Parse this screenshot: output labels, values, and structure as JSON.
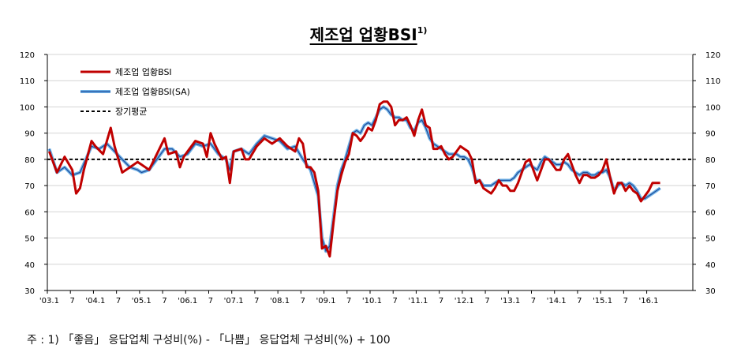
{
  "chart_data": {
    "type": "line",
    "title": "제조업 업황BSI",
    "title_superscript": "1)",
    "ylim": [
      30,
      120
    ],
    "yticks": [
      30,
      40,
      50,
      60,
      70,
      80,
      90,
      100,
      110,
      120
    ],
    "x_start": "2003-01",
    "x_end": "2016-12",
    "x_tick_labels": [
      "'03.1",
      "7",
      "'04.1",
      "7",
      "'05.1",
      "7",
      "'06.1",
      "7",
      "'07.1",
      "7",
      "'08.1",
      "7",
      "'09.1",
      "7",
      "'10.1",
      "7",
      "'11.1",
      "7",
      "'12.1",
      "7",
      "'13.1",
      "7",
      "'14.1",
      "7",
      "'15.1",
      "7",
      "'16.1"
    ],
    "grid": "horizontal",
    "legend_position": "top-left",
    "colors": {
      "raw": "#c00000",
      "sa_outer": "#6fb1e6",
      "sa_inner": "#1f4e9c",
      "average": "#000000"
    },
    "series": [
      {
        "name": "제조업 업황BSI",
        "style": "solid",
        "points": [
          [
            "2003-01",
            83
          ],
          [
            "2003-03",
            75
          ],
          [
            "2003-05",
            81
          ],
          [
            "2003-07",
            76
          ],
          [
            "2003-08",
            67
          ],
          [
            "2003-09",
            69
          ],
          [
            "2003-10",
            76
          ],
          [
            "2003-12",
            87
          ],
          [
            "2004-01",
            85
          ],
          [
            "2004-03",
            82
          ],
          [
            "2004-05",
            92
          ],
          [
            "2004-06",
            85
          ],
          [
            "2004-08",
            75
          ],
          [
            "2004-10",
            77
          ],
          [
            "2004-12",
            79
          ],
          [
            "2005-01",
            78
          ],
          [
            "2005-03",
            76
          ],
          [
            "2005-05",
            82
          ],
          [
            "2005-07",
            88
          ],
          [
            "2005-08",
            82
          ],
          [
            "2005-10",
            83
          ],
          [
            "2005-11",
            77
          ],
          [
            "2005-12",
            81
          ],
          [
            "2006-01",
            83
          ],
          [
            "2006-03",
            87
          ],
          [
            "2006-05",
            86
          ],
          [
            "2006-06",
            81
          ],
          [
            "2006-07",
            90
          ],
          [
            "2006-08",
            86
          ],
          [
            "2006-10",
            80
          ],
          [
            "2006-11",
            81
          ],
          [
            "2006-12",
            71
          ],
          [
            "2007-01",
            83
          ],
          [
            "2007-03",
            84
          ],
          [
            "2007-04",
            80
          ],
          [
            "2007-05",
            80
          ],
          [
            "2007-07",
            85
          ],
          [
            "2007-09",
            88
          ],
          [
            "2007-11",
            86
          ],
          [
            "2008-01",
            88
          ],
          [
            "2008-03",
            85
          ],
          [
            "2008-05",
            83
          ],
          [
            "2008-06",
            88
          ],
          [
            "2008-07",
            86
          ],
          [
            "2008-08",
            77
          ],
          [
            "2008-09",
            77
          ],
          [
            "2008-10",
            75
          ],
          [
            "2008-11",
            68
          ],
          [
            "2008-12",
            46
          ],
          [
            "2009-01",
            47
          ],
          [
            "2009-02",
            43
          ],
          [
            "2009-03",
            56
          ],
          [
            "2009-04",
            68
          ],
          [
            "2009-05",
            74
          ],
          [
            "2009-06",
            79
          ],
          [
            "2009-07",
            82
          ],
          [
            "2009-08",
            90
          ],
          [
            "2009-09",
            89
          ],
          [
            "2009-10",
            87
          ],
          [
            "2009-11",
            89
          ],
          [
            "2009-12",
            92
          ],
          [
            "2010-01",
            91
          ],
          [
            "2010-02",
            95
          ],
          [
            "2010-03",
            101
          ],
          [
            "2010-04",
            102
          ],
          [
            "2010-05",
            102
          ],
          [
            "2010-06",
            100
          ],
          [
            "2010-07",
            93
          ],
          [
            "2010-08",
            95
          ],
          [
            "2010-09",
            95
          ],
          [
            "2010-10",
            96
          ],
          [
            "2010-11",
            93
          ],
          [
            "2010-12",
            89
          ],
          [
            "2011-01",
            95
          ],
          [
            "2011-02",
            99
          ],
          [
            "2011-03",
            93
          ],
          [
            "2011-04",
            92
          ],
          [
            "2011-05",
            84
          ],
          [
            "2011-06",
            84
          ],
          [
            "2011-07",
            85
          ],
          [
            "2011-08",
            82
          ],
          [
            "2011-09",
            80
          ],
          [
            "2011-10",
            81
          ],
          [
            "2011-11",
            83
          ],
          [
            "2011-12",
            85
          ],
          [
            "2012-01",
            84
          ],
          [
            "2012-02",
            83
          ],
          [
            "2012-03",
            80
          ],
          [
            "2012-04",
            71
          ],
          [
            "2012-05",
            72
          ],
          [
            "2012-06",
            69
          ],
          [
            "2012-07",
            68
          ],
          [
            "2012-08",
            67
          ],
          [
            "2012-09",
            69
          ],
          [
            "2012-10",
            72
          ],
          [
            "2012-11",
            70
          ],
          [
            "2012-12",
            70
          ],
          [
            "2013-01",
            68
          ],
          [
            "2013-02",
            68
          ],
          [
            "2013-03",
            71
          ],
          [
            "2013-04",
            75
          ],
          [
            "2013-05",
            79
          ],
          [
            "2013-06",
            80
          ],
          [
            "2013-07",
            76
          ],
          [
            "2013-08",
            72
          ],
          [
            "2013-09",
            76
          ],
          [
            "2013-10",
            80
          ],
          [
            "2013-11",
            80
          ],
          [
            "2013-12",
            78
          ],
          [
            "2014-01",
            76
          ],
          [
            "2014-02",
            76
          ],
          [
            "2014-03",
            80
          ],
          [
            "2014-04",
            82
          ],
          [
            "2014-05",
            78
          ],
          [
            "2014-06",
            74
          ],
          [
            "2014-07",
            71
          ],
          [
            "2014-08",
            74
          ],
          [
            "2014-09",
            74
          ],
          [
            "2014-10",
            73
          ],
          [
            "2014-11",
            73
          ],
          [
            "2014-12",
            74
          ],
          [
            "2015-01",
            76
          ],
          [
            "2015-02",
            80
          ],
          [
            "2015-03",
            73
          ],
          [
            "2015-04",
            67
          ],
          [
            "2015-05",
            71
          ],
          [
            "2015-06",
            71
          ],
          [
            "2015-07",
            68
          ],
          [
            "2015-08",
            70
          ],
          [
            "2015-09",
            68
          ],
          [
            "2015-10",
            67
          ],
          [
            "2015-11",
            64
          ],
          [
            "2015-12",
            66
          ],
          [
            "2016-01",
            68
          ],
          [
            "2016-02",
            71
          ],
          [
            "2016-03",
            71
          ],
          [
            "2016-04",
            71
          ]
        ]
      },
      {
        "name": "제조업 업황BSI(SA)",
        "style": "double",
        "points": [
          [
            "2003-01",
            84
          ],
          [
            "2003-03",
            75
          ],
          [
            "2003-05",
            77
          ],
          [
            "2003-07",
            74
          ],
          [
            "2003-09",
            75
          ],
          [
            "2003-12",
            85
          ],
          [
            "2004-02",
            84
          ],
          [
            "2004-04",
            86
          ],
          [
            "2004-06",
            83
          ],
          [
            "2004-08",
            80
          ],
          [
            "2004-10",
            77
          ],
          [
            "2004-12",
            76
          ],
          [
            "2005-01",
            75
          ],
          [
            "2005-03",
            76
          ],
          [
            "2005-05",
            80
          ],
          [
            "2005-07",
            84
          ],
          [
            "2005-09",
            84
          ],
          [
            "2005-11",
            81
          ],
          [
            "2006-01",
            82
          ],
          [
            "2006-03",
            86
          ],
          [
            "2006-05",
            85
          ],
          [
            "2006-07",
            86
          ],
          [
            "2006-09",
            82
          ],
          [
            "2006-11",
            80
          ],
          [
            "2006-12",
            76
          ],
          [
            "2007-01",
            83
          ],
          [
            "2007-03",
            84
          ],
          [
            "2007-05",
            82
          ],
          [
            "2007-07",
            86
          ],
          [
            "2007-09",
            89
          ],
          [
            "2007-11",
            88
          ],
          [
            "2008-01",
            87
          ],
          [
            "2008-03",
            84
          ],
          [
            "2008-05",
            85
          ],
          [
            "2008-07",
            80
          ],
          [
            "2008-09",
            76
          ],
          [
            "2008-11",
            66
          ],
          [
            "2008-12",
            50
          ],
          [
            "2009-01",
            45
          ],
          [
            "2009-02",
            47
          ],
          [
            "2009-03",
            58
          ],
          [
            "2009-04",
            70
          ],
          [
            "2009-05",
            76
          ],
          [
            "2009-06",
            80
          ],
          [
            "2009-07",
            85
          ],
          [
            "2009-08",
            90
          ],
          [
            "2009-09",
            91
          ],
          [
            "2009-10",
            90
          ],
          [
            "2009-11",
            93
          ],
          [
            "2009-12",
            94
          ],
          [
            "2010-01",
            93
          ],
          [
            "2010-02",
            96
          ],
          [
            "2010-03",
            99
          ],
          [
            "2010-04",
            100
          ],
          [
            "2010-05",
            99
          ],
          [
            "2010-06",
            97
          ],
          [
            "2010-07",
            96
          ],
          [
            "2010-08",
            96
          ],
          [
            "2010-09",
            95
          ],
          [
            "2010-10",
            95
          ],
          [
            "2010-11",
            92
          ],
          [
            "2010-12",
            91
          ],
          [
            "2011-01",
            94
          ],
          [
            "2011-02",
            95
          ],
          [
            "2011-03",
            92
          ],
          [
            "2011-04",
            88
          ],
          [
            "2011-05",
            86
          ],
          [
            "2011-06",
            85
          ],
          [
            "2011-07",
            84
          ],
          [
            "2011-08",
            83
          ],
          [
            "2011-09",
            82
          ],
          [
            "2011-10",
            82
          ],
          [
            "2011-11",
            82
          ],
          [
            "2011-12",
            81
          ],
          [
            "2012-01",
            81
          ],
          [
            "2012-02",
            80
          ],
          [
            "2012-03",
            77
          ],
          [
            "2012-04",
            72
          ],
          [
            "2012-05",
            72
          ],
          [
            "2012-06",
            70
          ],
          [
            "2012-07",
            70
          ],
          [
            "2012-08",
            70
          ],
          [
            "2012-09",
            71
          ],
          [
            "2012-10",
            72
          ],
          [
            "2012-11",
            72
          ],
          [
            "2012-12",
            72
          ],
          [
            "2013-01",
            72
          ],
          [
            "2013-02",
            73
          ],
          [
            "2013-03",
            75
          ],
          [
            "2013-04",
            76
          ],
          [
            "2013-05",
            77
          ],
          [
            "2013-06",
            78
          ],
          [
            "2013-07",
            77
          ],
          [
            "2013-08",
            76
          ],
          [
            "2013-09",
            79
          ],
          [
            "2013-10",
            81
          ],
          [
            "2013-11",
            80
          ],
          [
            "2013-12",
            79
          ],
          [
            "2014-01",
            78
          ],
          [
            "2014-02",
            78
          ],
          [
            "2014-03",
            79
          ],
          [
            "2014-04",
            78
          ],
          [
            "2014-05",
            76
          ],
          [
            "2014-06",
            75
          ],
          [
            "2014-07",
            74
          ],
          [
            "2014-08",
            75
          ],
          [
            "2014-09",
            75
          ],
          [
            "2014-10",
            74
          ],
          [
            "2014-11",
            74
          ],
          [
            "2014-12",
            75
          ],
          [
            "2015-01",
            75
          ],
          [
            "2015-02",
            76
          ],
          [
            "2015-03",
            73
          ],
          [
            "2015-04",
            68
          ],
          [
            "2015-05",
            70
          ],
          [
            "2015-06",
            71
          ],
          [
            "2015-07",
            70
          ],
          [
            "2015-08",
            71
          ],
          [
            "2015-09",
            70
          ],
          [
            "2015-10",
            68
          ],
          [
            "2015-11",
            65
          ],
          [
            "2015-12",
            65
          ],
          [
            "2016-01",
            66
          ],
          [
            "2016-02",
            67
          ],
          [
            "2016-03",
            68
          ],
          [
            "2016-04",
            69
          ]
        ]
      },
      {
        "name": "장기평균",
        "style": "dashed",
        "constant": 80
      }
    ]
  },
  "footnote": "주 : 1) 「좋음」 응답업체 구성비(%) - 「나쁨」 응답업체 구성비(%) + 100"
}
